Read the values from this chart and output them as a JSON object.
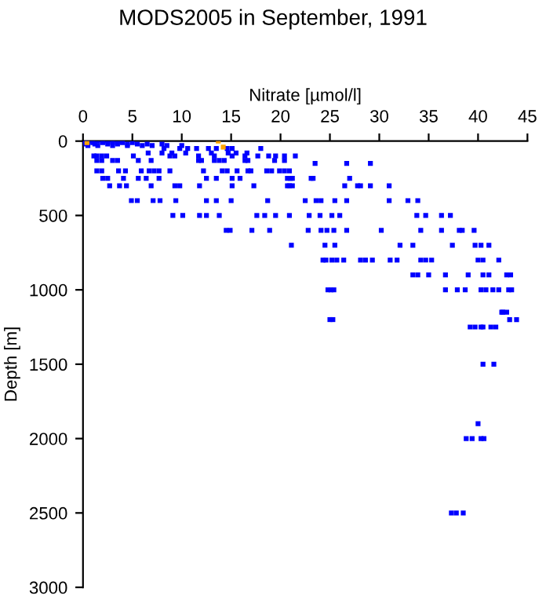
{
  "chart_data": {
    "type": "scatter",
    "title": "MODS2005 in September, 1991",
    "xlabel": "Nitrate [µmol/l]",
    "ylabel": "Depth [m]",
    "xlim": [
      0,
      45
    ],
    "xticks": [
      0,
      5,
      10,
      15,
      20,
      25,
      30,
      35,
      40,
      45
    ],
    "ylim": [
      3000,
      0
    ],
    "yticks": [
      0,
      500,
      1000,
      1500,
      2000,
      2500,
      3000
    ],
    "grid": false,
    "marker": "square",
    "series": [
      {
        "color": "#0000ff",
        "x": [
          0.1,
          0.5,
          1,
          1.5,
          2,
          2.5,
          3,
          3.5,
          4,
          0.2,
          1,
          2,
          3,
          4,
          5,
          0.3,
          1.2,
          2.5,
          3.5,
          4.5,
          5.5,
          6.5,
          8,
          0.5,
          1.5,
          3,
          4.5,
          6,
          7,
          8.5,
          10,
          8.2,
          9.8,
          10.6,
          11.5,
          12.7,
          13.5,
          14.6,
          15.1,
          18.0,
          6.6,
          8.0,
          9.0,
          10.4,
          13.0,
          14.7,
          15.5,
          16.6,
          1.1,
          1.4,
          1.9,
          2.4,
          5.1,
          8.8,
          9.3,
          11.7,
          13.3,
          15.1,
          16.4,
          17.7,
          18.8,
          19.5,
          20.4,
          21.5,
          1.4,
          1.9,
          3.0,
          3.5,
          5.6,
          6.9,
          11.7,
          12.0,
          13.3,
          13.8,
          14.3,
          16.4,
          16.7,
          19.4,
          20.4,
          1.4,
          1.9,
          3.6,
          4.3,
          5.9,
          6.7,
          7.2,
          7.7,
          8.8,
          12.2,
          14.1,
          14.6,
          15.6,
          16.7,
          17.0,
          18.6,
          19.1,
          19.9,
          20.4,
          20.9,
          23.5,
          26.7,
          29.1,
          2.0,
          2.5,
          4.1,
          5.6,
          6.4,
          7.7,
          12.5,
          13.5,
          15.1,
          15.9,
          20.7,
          21.0,
          21.2,
          23.1,
          23.3,
          27.0,
          2.7,
          3.7,
          4.4,
          6.9,
          9.3,
          9.8,
          11.8,
          15.1,
          17.3,
          20.7,
          20.9,
          21.2,
          26.5,
          27.8,
          28.1,
          29.1,
          31.0,
          4.9,
          5.5,
          7.1,
          7.8,
          9.4,
          12.5,
          13.5,
          15.0,
          18.7,
          22.5,
          23.6,
          24.1,
          25.5,
          26.7,
          31.0,
          32.9,
          33.9,
          9.1,
          10.1,
          11.8,
          12.5,
          13.8,
          17.6,
          18.4,
          19.5,
          20.9,
          22.9,
          24.0,
          25.2,
          26.0,
          33.8,
          34.7,
          36.3,
          37.2,
          14.5,
          14.9,
          17.1,
          18.9,
          22.8,
          24.1,
          24.7,
          25.4,
          26.7,
          30.2,
          34.2,
          36.3,
          38.1,
          38.4,
          39.6,
          21.1,
          24.5,
          25.5,
          32.1,
          33.4,
          37.4,
          39.7,
          40.3,
          41.1,
          24.3,
          24.6,
          25.2,
          25.7,
          26.4,
          28.1,
          28.6,
          29.3,
          31.1,
          31.8,
          34.2,
          34.7,
          35.3,
          40.0,
          40.5,
          42.1,
          33.4,
          33.9,
          35.0,
          36.7,
          39.0,
          40.5,
          41.1,
          42.9,
          43.3,
          24.8,
          25.1,
          25.4,
          36.7,
          37.9,
          38.7,
          40.3,
          40.8,
          41.5,
          42.1,
          43.1,
          43.4,
          42.4,
          42.9,
          42.5,
          25.0,
          25.3,
          43.2,
          43.9,
          39.2,
          39.7,
          40.3,
          40.5,
          41.3,
          41.8,
          40.5,
          41.6,
          40.0,
          38.8,
          39.4,
          40.3,
          40.6,
          37.3,
          37.8,
          38.5
        ],
        "values": [
          0,
          0,
          0,
          0,
          0,
          0,
          0,
          0,
          0,
          10,
          10,
          10,
          10,
          10,
          10,
          20,
          20,
          20,
          20,
          20,
          20,
          20,
          20,
          30,
          30,
          30,
          30,
          30,
          30,
          30,
          30,
          50,
          50,
          50,
          50,
          50,
          50,
          50,
          50,
          50,
          80,
          80,
          80,
          80,
          80,
          80,
          80,
          80,
          100,
          100,
          100,
          100,
          100,
          100,
          100,
          100,
          100,
          100,
          100,
          100,
          100,
          100,
          100,
          100,
          130,
          130,
          130,
          130,
          130,
          130,
          130,
          130,
          130,
          130,
          130,
          130,
          130,
          130,
          130,
          200,
          200,
          200,
          200,
          200,
          200,
          200,
          200,
          200,
          200,
          200,
          200,
          200,
          200,
          200,
          200,
          200,
          200,
          200,
          200,
          150,
          150,
          150,
          250,
          250,
          250,
          250,
          250,
          250,
          250,
          250,
          250,
          250,
          250,
          250,
          250,
          250,
          250,
          250,
          300,
          300,
          300,
          300,
          300,
          300,
          300,
          300,
          300,
          300,
          300,
          300,
          300,
          300,
          300,
          300,
          300,
          400,
          400,
          400,
          400,
          400,
          400,
          400,
          400,
          400,
          400,
          400,
          400,
          400,
          400,
          400,
          400,
          400,
          500,
          500,
          500,
          500,
          500,
          500,
          500,
          500,
          500,
          500,
          500,
          500,
          500,
          500,
          500,
          500,
          500,
          600,
          600,
          600,
          600,
          600,
          600,
          600,
          600,
          600,
          600,
          600,
          600,
          600,
          600,
          600,
          700,
          700,
          700,
          700,
          700,
          700,
          700,
          700,
          700,
          800,
          800,
          800,
          800,
          800,
          800,
          800,
          800,
          800,
          800,
          800,
          800,
          800,
          800,
          800,
          800,
          900,
          900,
          900,
          900,
          900,
          900,
          900,
          900,
          900,
          1000,
          1000,
          1000,
          1000,
          1000,
          1000,
          1000,
          1000,
          1000,
          1000,
          1000,
          1000,
          1150,
          1150,
          1150,
          1200,
          1200,
          1200,
          1200,
          1250,
          1250,
          1250,
          1250,
          1250,
          1250,
          1500,
          1500,
          1900,
          2000,
          2000,
          2000,
          2000,
          2500,
          2500,
          2500
        ]
      },
      {
        "color": "#ffa500",
        "x": [
          0.4,
          13.7,
          14.2
        ],
        "values": [
          10,
          0,
          40
        ]
      }
    ]
  }
}
